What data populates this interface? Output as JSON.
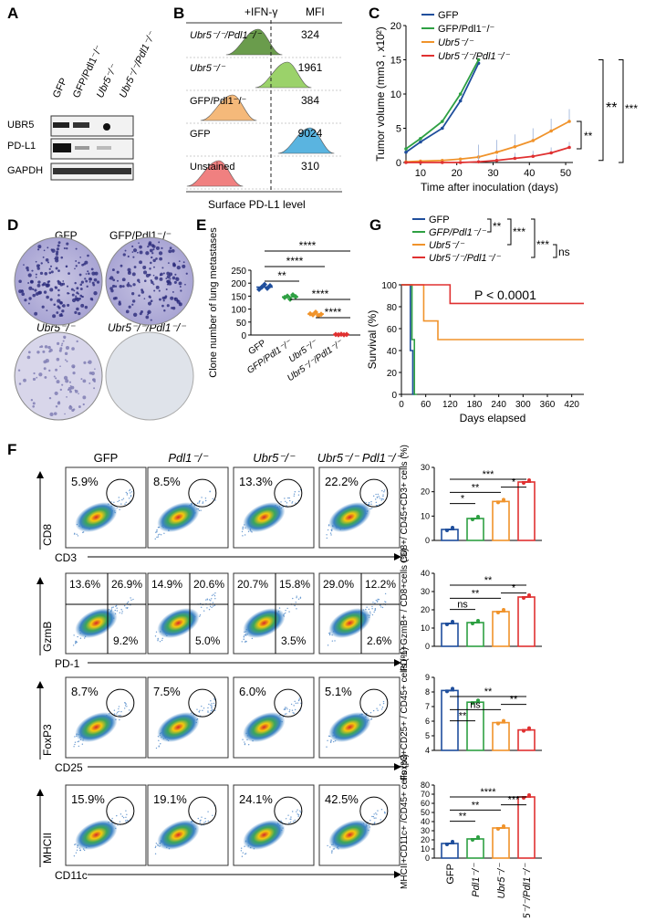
{
  "panels": {
    "A": "A",
    "B": "B",
    "C": "C",
    "D": "D",
    "E": "E",
    "F": "F",
    "G": "G"
  },
  "colors": {
    "gfp": "#1f4e9c",
    "gfp_pdl1": "#2ea043",
    "ubr5": "#f0932b",
    "ubr5_pdl1": "#e03131",
    "hist_dkgreen": "#6a9c4c",
    "hist_green": "#9bd26a",
    "hist_orange": "#f5b97a",
    "hist_blue": "#5ab4e0",
    "hist_red": "#f08080"
  },
  "panelA": {
    "lanes": [
      "GFP",
      "GFP/Pdl1⁻/⁻",
      "Ubr5⁻/⁻",
      "Ubr5⁻/⁻/Pdl1⁻/⁻"
    ],
    "rows": [
      "UBR5",
      "PD-L1",
      "GAPDH"
    ]
  },
  "panelB": {
    "header": "+IFN-γ",
    "mfi_header": "MFI",
    "xlabel": "Surface PD-L1 level",
    "rows": [
      {
        "label": "Ubr5⁻/⁻/Pdl1⁻/⁻",
        "mfi": "324"
      },
      {
        "label": "Ubr5⁻/⁻",
        "mfi": "1961"
      },
      {
        "label": "GFP/Pdl1⁻/⁻",
        "mfi": "384"
      },
      {
        "label": "GFP",
        "mfi": "9024"
      },
      {
        "label": "Unstained",
        "mfi": "310"
      }
    ]
  },
  "chart_data": [
    {
      "id": "C",
      "type": "line",
      "title": "",
      "xlabel": "Time after inoculation (days)",
      "ylabel": "Tumor volume (mm3 , x10²)",
      "xlim": [
        6,
        52
      ],
      "ylim": [
        0,
        20
      ],
      "xticks": [
        10,
        20,
        30,
        40,
        50
      ],
      "yticks": [
        0,
        5,
        10,
        15,
        20
      ],
      "series": [
        {
          "name": "GFP",
          "x": [
            6,
            10,
            16,
            21,
            26
          ],
          "y": [
            1.5,
            3,
            5,
            9,
            14.5
          ]
        },
        {
          "name": "GFP/Pdl1⁻/⁻",
          "x": [
            6,
            10,
            16,
            21,
            26
          ],
          "y": [
            2,
            3.5,
            6,
            10,
            15
          ]
        },
        {
          "name": "Ubr5⁻/⁻",
          "x": [
            6,
            10,
            16,
            21,
            26,
            31,
            36,
            41,
            46,
            51
          ],
          "y": [
            0.1,
            0.2,
            0.3,
            0.5,
            0.8,
            1.5,
            2.3,
            3.2,
            4.6,
            6
          ]
        },
        {
          "name": "Ubr5⁻/⁻/Pdl1⁻/⁻",
          "x": [
            6,
            10,
            16,
            21,
            26,
            31,
            36,
            41,
            46,
            51
          ],
          "y": [
            0,
            0,
            0,
            0,
            0.1,
            0.3,
            0.6,
            0.9,
            1.4,
            2.2
          ]
        }
      ],
      "annotations": [
        "**",
        "**",
        "***"
      ]
    },
    {
      "id": "E",
      "type": "scatter",
      "ylabel": "Clone number of lung metastases",
      "ylim": [
        0,
        250
      ],
      "yticks": [
        0,
        50,
        100,
        150,
        200,
        250
      ],
      "categories": [
        "GFP",
        "GFP/Pdl1⁻/⁻",
        "Ubr5⁻/⁻",
        "Ubr5⁻/⁻/Pdl1⁻/⁻"
      ],
      "points": [
        [
          176,
          185,
          195,
          180,
          190
        ],
        [
          145,
          150,
          138,
          155,
          148
        ],
        [
          82,
          78,
          88,
          75,
          80
        ],
        [
          2,
          1,
          3,
          1,
          2
        ]
      ],
      "means": [
        185,
        147,
        81,
        2
      ],
      "annotations": [
        "****",
        "****",
        "**",
        "****",
        "****"
      ]
    },
    {
      "id": "G",
      "type": "line",
      "xlabel": "Days elapsed",
      "ylabel": "Survival (%)",
      "xlim": [
        0,
        450
      ],
      "ylim": [
        0,
        100
      ],
      "xticks": [
        0,
        60,
        120,
        180,
        240,
        300,
        360,
        420
      ],
      "yticks": [
        0,
        20,
        40,
        60,
        80,
        100
      ],
      "pvalue": "P < 0.0001",
      "series": [
        {
          "name": "GFP",
          "x": [
            0,
            22,
            22,
            28,
            28,
            34,
            34
          ],
          "y": [
            100,
            100,
            40,
            40,
            0,
            0,
            0
          ]
        },
        {
          "name": "GFP/Pdl1⁻/⁻",
          "x": [
            0,
            26,
            26,
            32,
            32,
            38
          ],
          "y": [
            100,
            100,
            50,
            50,
            0,
            0
          ]
        },
        {
          "name": "Ubr5⁻/⁻",
          "x": [
            0,
            55,
            55,
            90,
            90,
            450
          ],
          "y": [
            100,
            100,
            67,
            67,
            50,
            50
          ]
        },
        {
          "name": "Ubr5⁻/⁻/Pdl1⁻/⁻",
          "x": [
            0,
            120,
            120,
            450
          ],
          "y": [
            100,
            100,
            83,
            83
          ]
        }
      ],
      "annotations": [
        "**",
        "***",
        "***",
        "ns"
      ]
    },
    {
      "id": "F1",
      "type": "bar",
      "ylabel": "CD8+/ CD45+CD3+ cells (%)",
      "ylim": [
        0,
        30
      ],
      "yticks": [
        0,
        10,
        20,
        30
      ],
      "categories": [
        "GFP",
        "Pdl1⁻/⁻",
        "Ubr5⁻/⁻",
        "Ubr5⁻/⁻/Pdl1⁻/⁻"
      ],
      "values": [
        4.5,
        9,
        16,
        24
      ],
      "annotations": [
        "*",
        "**",
        "***",
        "*"
      ]
    },
    {
      "id": "F2",
      "type": "bar",
      "ylabel": "PD-1+GzmB+ / CD8+cells (%)",
      "ylim": [
        0,
        40
      ],
      "yticks": [
        0,
        10,
        20,
        30,
        40
      ],
      "categories": [
        "GFP",
        "Pdl1⁻/⁻",
        "Ubr5⁻/⁻",
        "Ubr5⁻/⁻/Pdl1⁻/⁻"
      ],
      "values": [
        12.5,
        13,
        19,
        27
      ],
      "annotations": [
        "ns",
        "**",
        "**",
        "*"
      ]
    },
    {
      "id": "F3",
      "type": "bar",
      "ylabel": "Foxp3+CD25+ / CD45+ cells (%)",
      "ylim": [
        4,
        9
      ],
      "yticks": [
        4,
        5,
        6,
        7,
        8,
        9
      ],
      "categories": [
        "GFP",
        "Pdl1⁻/⁻",
        "Ubr5⁻/⁻",
        "Ubr5⁻/⁻/Pdl1⁻/⁻"
      ],
      "values": [
        8.1,
        7.3,
        5.9,
        5.4
      ],
      "annotations": [
        "**",
        "ns",
        "**",
        "**"
      ]
    },
    {
      "id": "F4",
      "type": "bar",
      "ylabel": "MHCII+CD11c+ /CD45+ cells (%)",
      "ylim": [
        0,
        80
      ],
      "yticks": [
        0,
        10,
        20,
        30,
        40,
        50,
        60,
        70,
        80
      ],
      "categories": [
        "GFP",
        "Pdl1⁻/⁻",
        "Ubr5⁻/⁻",
        "Ubr5⁻/⁻/Pdl1⁻/⁻"
      ],
      "values": [
        16,
        21,
        33,
        67
      ],
      "annotations": [
        "**",
        "**",
        "****",
        "***"
      ]
    }
  ],
  "panelD": {
    "labels": [
      "GFP",
      "GFP/Pdl1⁻/⁻",
      "Ubr5⁻/⁻",
      "Ubr5⁻/⁻/Pdl1⁻/⁻"
    ]
  },
  "panelF": {
    "col_headers": [
      "GFP",
      "Pdl1⁻/⁻",
      "Ubr5⁻/⁻",
      "Ubr5⁻/⁻ Pdl1⁻/⁻"
    ],
    "rows": [
      {
        "ylabel": "CD8",
        "xlabel": "CD3",
        "pcts": [
          "5.9%",
          "8.5%",
          "13.3%",
          "22.2%"
        ]
      },
      {
        "ylabel": "GzmB",
        "xlabel": "PD-1",
        "q_tl": [
          "13.6%",
          "14.9%",
          "20.7%",
          "29.0%"
        ],
        "q_tr": [
          "26.9%",
          "20.6%",
          "15.8%",
          "12.2%"
        ],
        "q_br": [
          "9.2%",
          "5.0%",
          "3.5%",
          "2.6%"
        ]
      },
      {
        "ylabel": "FoxP3",
        "xlabel": "CD25",
        "pcts": [
          "8.7%",
          "7.5%",
          "6.0%",
          "5.1%"
        ]
      },
      {
        "ylabel": "MHCII",
        "xlabel": "CD11c",
        "pcts": [
          "15.9%",
          "19.1%",
          "24.1%",
          "42.5%"
        ]
      }
    ]
  }
}
